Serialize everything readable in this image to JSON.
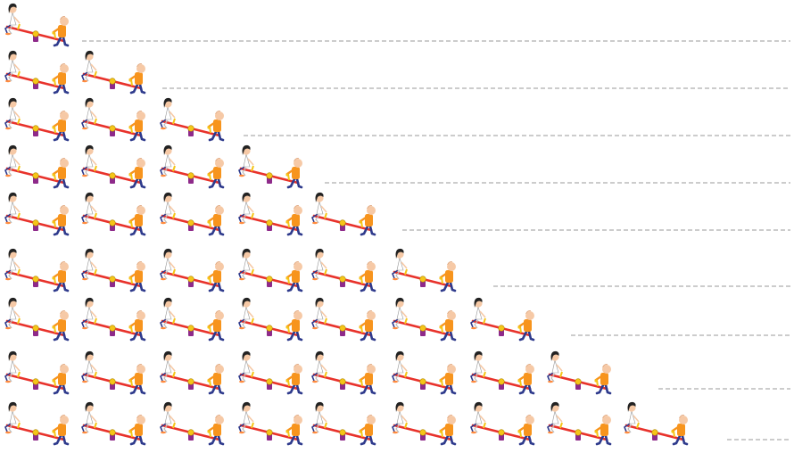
{
  "title": "",
  "rows": [
    {
      "seesaw_count": 1,
      "answer_line": ""
    },
    {
      "seesaw_count": 2,
      "answer_line": ""
    },
    {
      "seesaw_count": 3,
      "answer_line": ""
    },
    {
      "seesaw_count": 4,
      "answer_line": ""
    },
    {
      "seesaw_count": 5,
      "answer_line": ""
    },
    {
      "seesaw_count": 6,
      "answer_line": ""
    },
    {
      "seesaw_count": 7,
      "answer_line": ""
    },
    {
      "seesaw_count": 8,
      "answer_line": ""
    },
    {
      "seesaw_count": 9,
      "answer_line": ""
    }
  ],
  "icon": "seesaw-with-two-children-icon",
  "colors": {
    "plank": "#e8322b",
    "pivot": "#8e2a8a",
    "handle": "#f5c518",
    "boy_shirt": "#f7941d",
    "boy_pants": "#2e3a8c",
    "girl_hair": "#222222",
    "girl_shirt": "#ffffff",
    "skin": "#f6c9a6",
    "dashed_line": "#999999"
  }
}
